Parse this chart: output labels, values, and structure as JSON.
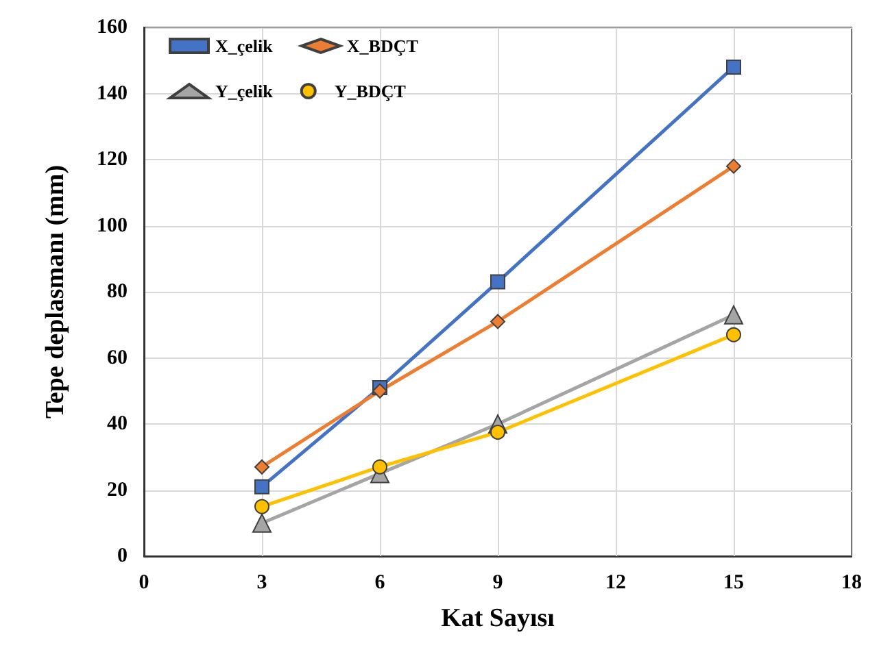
{
  "chart_data": {
    "type": "line",
    "xlabel": "Kat Sayısı",
    "ylabel": "Tepe deplasmanı (mm)",
    "x": [
      3,
      6,
      9,
      15
    ],
    "series": [
      {
        "name": "X_çelik",
        "color": "#4472c4",
        "marker": "square",
        "values": [
          21,
          51,
          83,
          148
        ]
      },
      {
        "name": "X_BDÇT",
        "color": "#ed7d31",
        "marker": "diamond",
        "values": [
          27,
          50,
          71,
          118
        ]
      },
      {
        "name": "Y_çelik",
        "color": "#a5a5a5",
        "marker": "triangle",
        "values": [
          10,
          25,
          40,
          73
        ]
      },
      {
        "name": "Y_BDÇT",
        "color": "#ffc000",
        "marker": "circle",
        "values": [
          15,
          27,
          37.5,
          67
        ]
      }
    ],
    "xlim": [
      0,
      18
    ],
    "xticks": [
      0,
      3,
      6,
      9,
      12,
      15,
      18
    ],
    "ylim": [
      0,
      160
    ],
    "yticks": [
      0,
      20,
      40,
      60,
      80,
      100,
      120,
      140,
      160
    ],
    "grid": true,
    "legend": "top left"
  }
}
